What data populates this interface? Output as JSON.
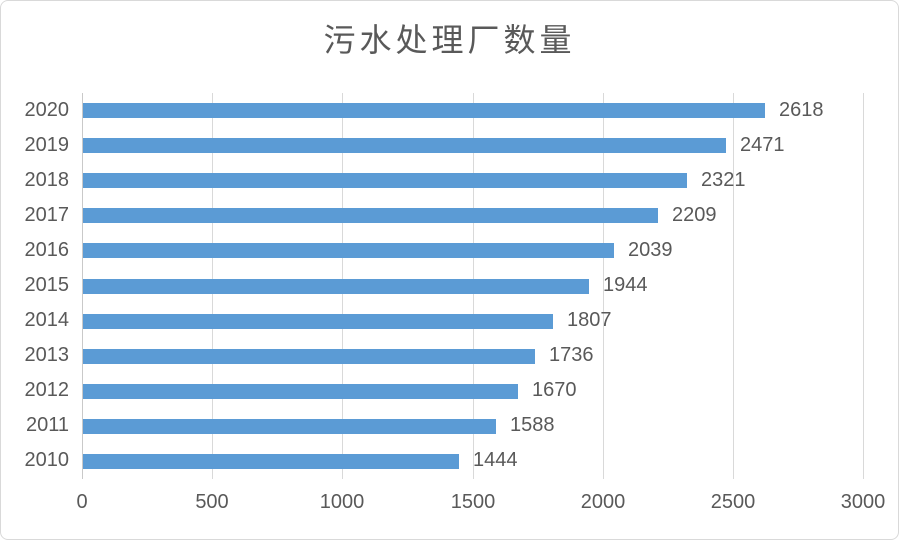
{
  "chart_data": {
    "type": "bar",
    "orientation": "horizontal",
    "title": "污水处理厂数量",
    "categories": [
      "2020",
      "2019",
      "2018",
      "2017",
      "2016",
      "2015",
      "2014",
      "2013",
      "2012",
      "2011",
      "2010"
    ],
    "values": [
      2618,
      2471,
      2321,
      2209,
      2039,
      1944,
      1807,
      1736,
      1670,
      1588,
      1444
    ],
    "xlabel": "",
    "ylabel": "",
    "xlim": [
      0,
      3000
    ],
    "x_ticks": [
      0,
      500,
      1000,
      1500,
      2000,
      2500,
      3000
    ],
    "grid": true,
    "legend_position": "none",
    "data_labels": true,
    "bar_color": "#5b9bd5",
    "gridline_color": "#d9d9d9",
    "axis_line_color": "#c9c9c9",
    "text_color": "#595959",
    "background_color": "#ffffff"
  }
}
